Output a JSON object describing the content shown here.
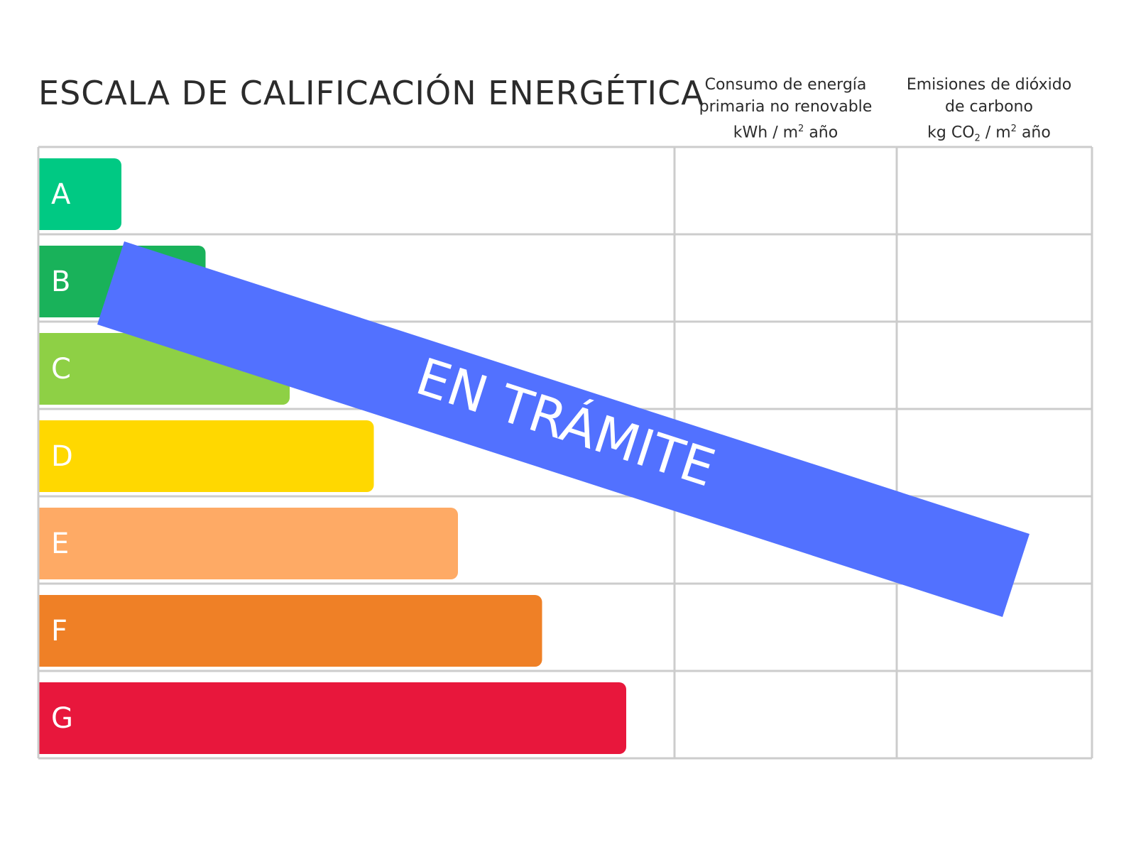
{
  "title": "ESCALA DE CALIFICACIÓN ENERGÉTICA",
  "columns": [
    {
      "line1": "Consumo de energía",
      "line2": "primaria no renovable",
      "unit_pre": "kWh / m",
      "unit_sup": "2",
      "unit_post": " año"
    },
    {
      "line1": "Emisiones de dióxido",
      "line2": "de carbono",
      "unit_pre": "kg CO",
      "unit_sub": "2",
      "unit_mid": " / m",
      "unit_sup": "2",
      "unit_post": " año"
    }
  ],
  "ratings": [
    {
      "label": "A",
      "color": "#00c983"
    },
    {
      "label": "B",
      "color": "#19b25a"
    },
    {
      "label": "C",
      "color": "#8ed045"
    },
    {
      "label": "D",
      "color": "#ffd800"
    },
    {
      "label": "E",
      "color": "#feaa65"
    },
    {
      "label": "F",
      "color": "#ef8026"
    },
    {
      "label": "G",
      "color": "#e8173c"
    }
  ],
  "stamp": {
    "text": "EN TRÁMITE",
    "color": "#5271ff"
  },
  "grid_color": "#cccccc"
}
